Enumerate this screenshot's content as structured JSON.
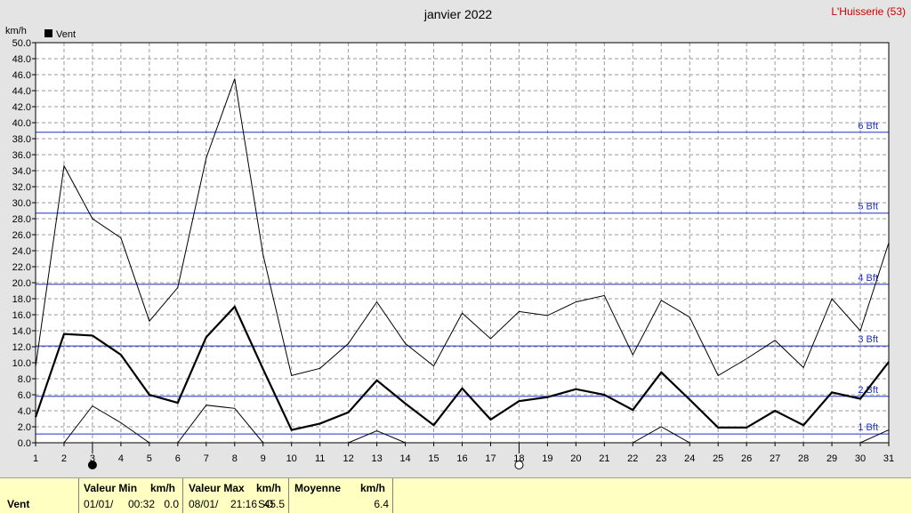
{
  "chart_data": {
    "type": "line",
    "title": "janvier 2022",
    "station": "L'Huisserie (53)",
    "ylabel": "km/h",
    "legend": [
      {
        "name": "Vent",
        "color": "#000000"
      }
    ],
    "legend_position": "top-left",
    "grid": true,
    "xlim": [
      1,
      31
    ],
    "ylim": [
      0,
      50
    ],
    "x_ticks": [
      1,
      2,
      3,
      4,
      5,
      6,
      7,
      8,
      9,
      10,
      11,
      12,
      13,
      14,
      15,
      16,
      17,
      18,
      19,
      20,
      21,
      22,
      23,
      24,
      25,
      26,
      27,
      28,
      29,
      30,
      31
    ],
    "y_ticks": [
      "0.0",
      "2.0",
      "4.0",
      "6.0",
      "8.0",
      "10.0",
      "12.0",
      "14.0",
      "16.0",
      "18.0",
      "20.0",
      "22.0",
      "24.0",
      "26.0",
      "28.0",
      "30.0",
      "32.0",
      "34.0",
      "36.0",
      "38.0",
      "40.0",
      "42.0",
      "44.0",
      "46.0",
      "48.0",
      "50.0"
    ],
    "beaufort_lines": [
      {
        "label": "1 Bft",
        "value": 1.1
      },
      {
        "label": "2 Bft",
        "value": 5.8
      },
      {
        "label": "3 Bft",
        "value": 12.1
      },
      {
        "label": "4 Bft",
        "value": 19.8
      },
      {
        "label": "5 Bft",
        "value": 28.7
      },
      {
        "label": "6 Bft",
        "value": 38.8
      }
    ],
    "moon_phases": [
      {
        "day": 3,
        "phase": "new"
      },
      {
        "day": 18,
        "phase": "full"
      }
    ],
    "x": [
      1,
      2,
      3,
      4,
      5,
      6,
      7,
      8,
      9,
      10,
      11,
      12,
      13,
      14,
      15,
      16,
      17,
      18,
      19,
      20,
      21,
      22,
      23,
      24,
      25,
      26,
      27,
      28,
      29,
      30,
      31
    ],
    "series": [
      {
        "name": "Vent",
        "role": "mean",
        "values": [
          3.2,
          13.6,
          13.4,
          11.0,
          6.0,
          5.0,
          13.2,
          17.0,
          9.2,
          1.6,
          2.4,
          3.8,
          7.8,
          4.9,
          2.2,
          6.8,
          2.9,
          5.2,
          5.7,
          6.7,
          6.0,
          4.1,
          8.8,
          5.4,
          1.9,
          1.9,
          4.0,
          2.2,
          6.3,
          5.5,
          10.1
        ]
      },
      {
        "name": "max",
        "role": "max",
        "values": [
          9.5,
          34.6,
          28.0,
          25.6,
          15.2,
          19.4,
          35.6,
          45.5,
          23.5,
          8.4,
          9.3,
          12.4,
          17.6,
          12.4,
          9.6,
          16.2,
          13.0,
          16.4,
          15.9,
          17.6,
          18.4,
          11.0,
          17.8,
          15.7,
          8.4,
          10.5,
          12.8,
          9.4,
          18.0,
          14.0,
          25.0
        ]
      },
      {
        "name": "min",
        "role": "min",
        "values": [
          0.0,
          0.0,
          4.6,
          2.5,
          0.0,
          0.0,
          4.7,
          4.3,
          0.0,
          0.0,
          0.0,
          0.0,
          1.5,
          0.0,
          0.0,
          0.0,
          0.0,
          0.0,
          0.0,
          0.0,
          0.0,
          0.0,
          2.0,
          0.0,
          0.0,
          0.0,
          0.0,
          0.0,
          0.0,
          0.0,
          1.6
        ]
      }
    ]
  },
  "footer": {
    "row_label": "Vent",
    "min_header": "Valeur Min",
    "min_unit": "km/h",
    "min_date": "01/01/",
    "min_time": "00:32",
    "min_value": "0.0",
    "max_header": "Valeur Max",
    "max_unit": "km/h",
    "max_date": "08/01/",
    "max_time": "21:16",
    "max_dir": "SO",
    "max_value": "45.5",
    "avg_header": "Moyenne",
    "avg_unit": "km/h",
    "avg_value": "6.4"
  }
}
